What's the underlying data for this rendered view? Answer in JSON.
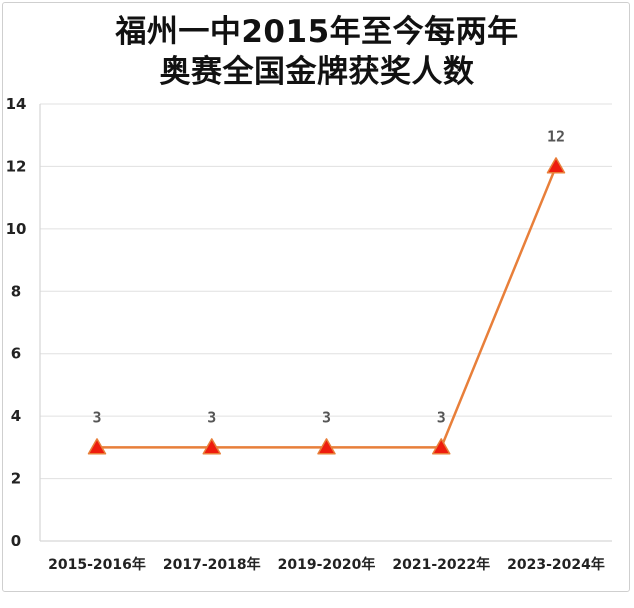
{
  "chart_data": {
    "type": "line",
    "title_lines": [
      "福州一中2015年至今每两年",
      "奥赛全国金牌获奖人数"
    ],
    "categories": [
      "2015-2016年",
      "2017-2018年",
      "2019-2020年",
      "2021-2022年",
      "2023-2024年"
    ],
    "series": [
      {
        "values": [
          3,
          3,
          3,
          3,
          12
        ],
        "data_labels": [
          "3",
          "3",
          "3",
          "3",
          "12"
        ],
        "line_color": "#e87f3a",
        "marker_fill": "#ee1c0e",
        "marker_stroke": "#e87f3a",
        "marker": "triangle"
      }
    ],
    "ylim": [
      0,
      14
    ],
    "yticks": [
      0,
      2,
      4,
      6,
      8,
      10,
      12,
      14
    ],
    "grid": true,
    "grid_color": "#e0e0e0",
    "legend": "none"
  }
}
